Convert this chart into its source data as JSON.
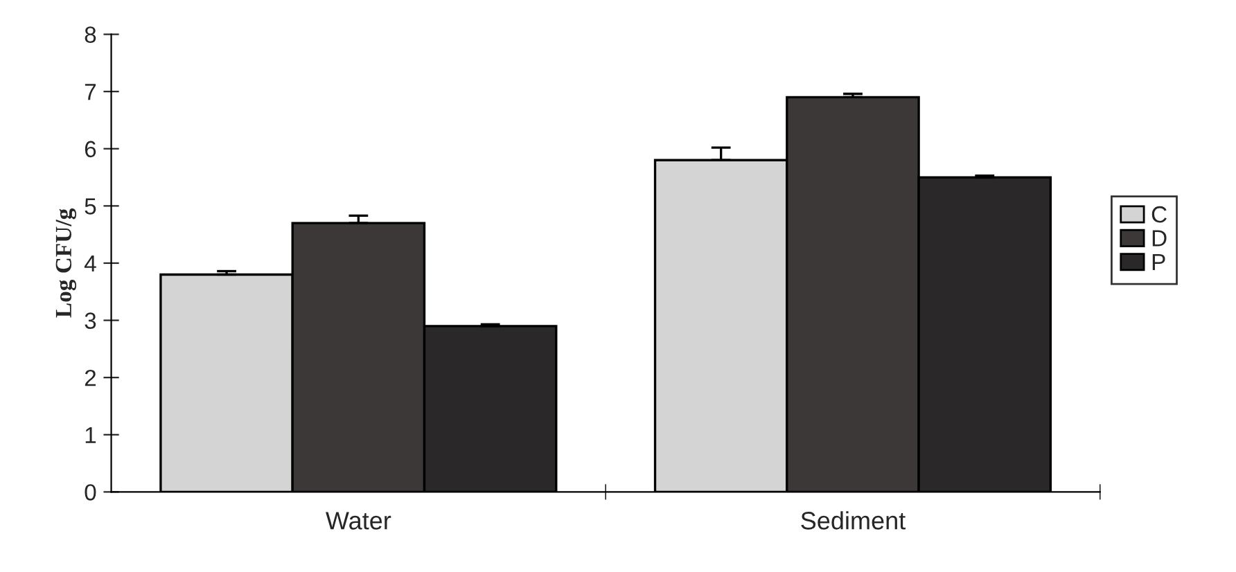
{
  "chart_data": {
    "type": "bar",
    "categories": [
      "Water",
      "Sediment"
    ],
    "ylabel": "Log CFU/g",
    "series": [
      {
        "name": "C",
        "color": "#d4d4d4",
        "values": [
          3.8,
          5.8
        ],
        "errors": [
          0.06,
          0.22
        ]
      },
      {
        "name": "D",
        "color": "#3c3838",
        "values": [
          4.7,
          6.9
        ],
        "errors": [
          0.13,
          0.06
        ]
      },
      {
        "name": "P",
        "color": "#2a2828",
        "values": [
          2.9,
          5.5
        ],
        "errors": [
          0.03,
          0.03
        ]
      }
    ],
    "ylim": [
      0,
      8
    ],
    "yticks": [
      0,
      1,
      2,
      3,
      4,
      5,
      6,
      7,
      8
    ],
    "grid": false,
    "legend": "right"
  }
}
